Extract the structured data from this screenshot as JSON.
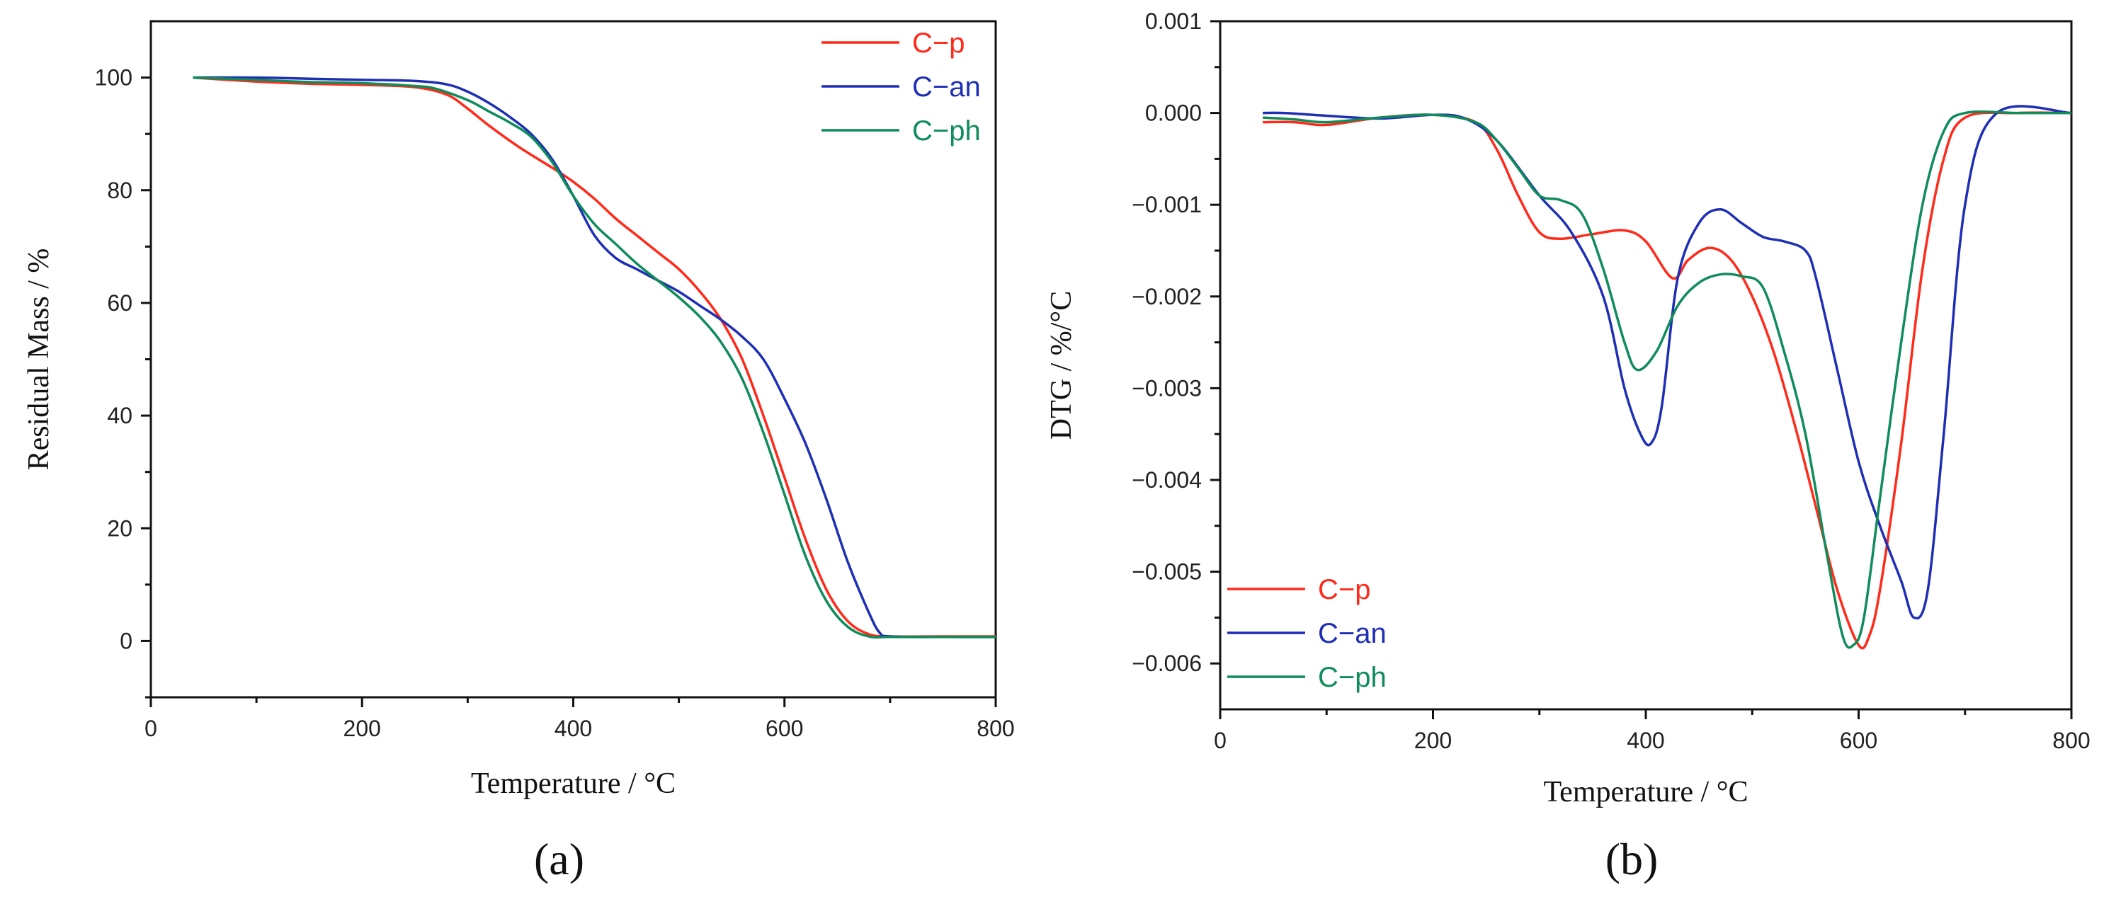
{
  "colors": {
    "C-p": "#ff2a1a",
    "C-an": "#1f2fb5",
    "C-ph": "#0f8c5a"
  },
  "chart_data": [
    {
      "type": "line",
      "panel_label": "(a)",
      "xlabel": "Temperature / °C",
      "ylabel": "Residual Mass / %",
      "xlim": [
        0,
        800
      ],
      "ylim": [
        -10,
        110
      ],
      "xticks": [
        0,
        200,
        400,
        600,
        800
      ],
      "xtick_labels": [
        "0",
        "200",
        "400",
        "600",
        "800"
      ],
      "yticks": [
        0,
        20,
        40,
        60,
        80,
        100
      ],
      "ytick_labels": [
        "0",
        "20",
        "40",
        "60",
        "80",
        "100"
      ],
      "legend_position": "top-right",
      "series": [
        {
          "name": "C−p",
          "key": "C-p",
          "x": [
            40,
            100,
            150,
            200,
            250,
            280,
            300,
            320,
            350,
            380,
            400,
            420,
            440,
            460,
            480,
            500,
            520,
            540,
            560,
            580,
            600,
            620,
            640,
            660,
            680,
            700,
            750,
            800
          ],
          "y": [
            100,
            99.3,
            98.9,
            98.7,
            98.3,
            97,
            94.5,
            91.5,
            87.5,
            84,
            81.5,
            78.5,
            75,
            72,
            69,
            66,
            62,
            57,
            50,
            40,
            29,
            18,
            9,
            3.5,
            1.2,
            0.8,
            0.8,
            0.8
          ]
        },
        {
          "name": "C−an",
          "key": "C-an",
          "x": [
            40,
            100,
            150,
            200,
            250,
            280,
            300,
            320,
            340,
            360,
            380,
            400,
            420,
            440,
            460,
            480,
            500,
            520,
            540,
            560,
            580,
            600,
            620,
            640,
            660,
            680,
            690,
            700,
            750,
            800
          ],
          "y": [
            100,
            100,
            99.8,
            99.6,
            99.4,
            98.8,
            97.5,
            95.5,
            93,
            90,
            85.5,
            79,
            72,
            68,
            66,
            64,
            62,
            59.5,
            57,
            54,
            50,
            43,
            35,
            25,
            14,
            5,
            1.5,
            0.8,
            0.7,
            0.7
          ]
        },
        {
          "name": "C−ph",
          "key": "C-ph",
          "x": [
            40,
            100,
            150,
            200,
            250,
            270,
            300,
            320,
            340,
            360,
            380,
            400,
            420,
            440,
            460,
            480,
            500,
            520,
            540,
            560,
            580,
            600,
            620,
            640,
            660,
            680,
            700,
            750,
            800
          ],
          "y": [
            100,
            99.6,
            99.2,
            99,
            98.5,
            98,
            96,
            94,
            92,
            89.5,
            85,
            79,
            74,
            70.5,
            67,
            64,
            61,
            57.5,
            53,
            46.5,
            37,
            26,
            15,
            7,
            2.5,
            0.8,
            0.7,
            0.7,
            0.7
          ]
        }
      ]
    },
    {
      "type": "line",
      "panel_label": "(b)",
      "xlabel": "Temperature / °C",
      "ylabel": "DTG / %/°C",
      "xlim": [
        0,
        800
      ],
      "ylim": [
        -0.0065,
        0.001
      ],
      "xticks": [
        0,
        200,
        400,
        600,
        800
      ],
      "xtick_labels": [
        "0",
        "200",
        "400",
        "600",
        "800"
      ],
      "yticks": [
        0.001,
        0,
        -0.001,
        -0.002,
        -0.003,
        -0.004,
        -0.005,
        -0.006
      ],
      "ytick_labels": [
        "0.001",
        "0.000",
        "−0.001",
        "−0.002",
        "−0.003",
        "−0.004",
        "−0.005",
        "−0.006"
      ],
      "legend_position": "bottom-left",
      "series": [
        {
          "name": "C−p",
          "key": "C-p",
          "x": [
            40,
            70,
            100,
            150,
            200,
            240,
            260,
            280,
            300,
            320,
            350,
            380,
            400,
            425,
            440,
            460,
            480,
            500,
            520,
            540,
            560,
            580,
            600,
            610,
            620,
            640,
            660,
            680,
            700,
            750,
            800
          ],
          "y": [
            -0.0001,
            -0.0001,
            -0.00013,
            -5e-05,
            -2e-05,
            -0.0001,
            -0.0004,
            -0.0009,
            -0.0013,
            -0.00137,
            -0.00132,
            -0.00128,
            -0.0014,
            -0.0018,
            -0.0016,
            -0.00147,
            -0.0016,
            -0.002,
            -0.0026,
            -0.0034,
            -0.0043,
            -0.0052,
            -0.0058,
            -0.0057,
            -0.0052,
            -0.0036,
            -0.0017,
            -0.0005,
            -5e-05,
            0,
            0
          ]
        },
        {
          "name": "C−an",
          "key": "C-an",
          "x": [
            40,
            60,
            100,
            150,
            200,
            230,
            260,
            300,
            330,
            360,
            380,
            395,
            405,
            415,
            430,
            450,
            470,
            490,
            510,
            530,
            550,
            560,
            580,
            600,
            620,
            640,
            652,
            665,
            680,
            700,
            730,
            800
          ],
          "y": [
            0,
            0,
            -3e-05,
            -6e-05,
            -2e-05,
            -6e-05,
            -0.0003,
            -0.0009,
            -0.0013,
            -0.002,
            -0.003,
            -0.0035,
            -0.0036,
            -0.0032,
            -0.0018,
            -0.0012,
            -0.00105,
            -0.0012,
            -0.00135,
            -0.0014,
            -0.0015,
            -0.0018,
            -0.0028,
            -0.0038,
            -0.0045,
            -0.0051,
            -0.0055,
            -0.0052,
            -0.0035,
            -0.001,
            0,
            0
          ]
        },
        {
          "name": "C−ph",
          "key": "C-ph",
          "x": [
            40,
            70,
            100,
            150,
            200,
            240,
            260,
            280,
            300,
            320,
            340,
            360,
            380,
            392,
            410,
            430,
            450,
            470,
            490,
            510,
            530,
            550,
            570,
            585,
            595,
            605,
            620,
            640,
            660,
            680,
            700,
            750,
            800
          ],
          "y": [
            -5e-05,
            -7e-05,
            -0.0001,
            -5e-05,
            -2e-05,
            -0.0001,
            -0.0003,
            -0.0006,
            -0.0009,
            -0.00095,
            -0.0011,
            -0.0017,
            -0.0025,
            -0.0028,
            -0.0026,
            -0.0021,
            -0.00185,
            -0.00176,
            -0.00178,
            -0.0019,
            -0.0026,
            -0.0035,
            -0.0048,
            -0.0057,
            -0.0058,
            -0.0055,
            -0.0042,
            -0.0025,
            -0.001,
            -0.0002,
            0,
            0,
            0
          ]
        }
      ]
    }
  ]
}
